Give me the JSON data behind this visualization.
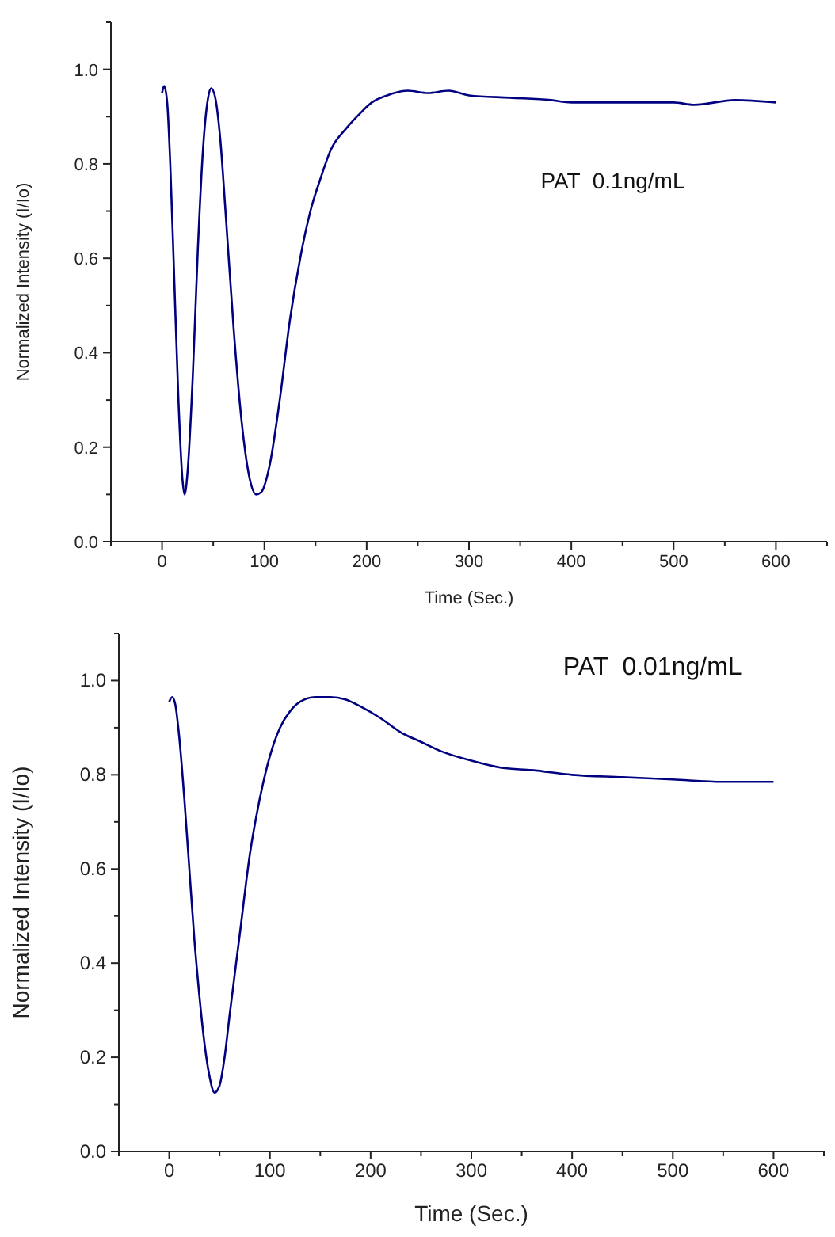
{
  "chart_data": [
    {
      "type": "line",
      "xlabel": "Time (Sec.)",
      "ylabel": "Normalized Intensity (I/Io)",
      "annotations": [
        "PAT  0.1ng/mL"
      ],
      "xlim": [
        -50,
        650
      ],
      "ylim": [
        0,
        1.1
      ],
      "xticks": [
        {
          "value": -50,
          "label": null
        },
        0,
        {
          "value": 50,
          "label": null
        },
        100,
        {
          "value": 150,
          "label": null
        },
        200,
        {
          "value": 250,
          "label": null
        },
        300,
        {
          "value": 350,
          "label": null
        },
        400,
        {
          "value": 450,
          "label": null
        },
        500,
        {
          "value": 550,
          "label": null
        },
        600,
        {
          "value": 650,
          "label": null
        }
      ],
      "yticks": [
        {
          "value": 0,
          "label": "0.0"
        },
        {
          "value": 0.1,
          "label": null
        },
        {
          "value": 0.2,
          "label": "0.2"
        },
        {
          "value": 0.3,
          "label": null
        },
        {
          "value": 0.4,
          "label": "0.4"
        },
        {
          "value": 0.5,
          "label": null
        },
        {
          "value": 0.6,
          "label": "0.6"
        },
        {
          "value": 0.7,
          "label": null
        },
        {
          "value": 0.8,
          "label": "0.8"
        },
        {
          "value": 0.9,
          "label": null
        },
        {
          "value": 1.0,
          "label": "1.0"
        },
        {
          "value": 1.1,
          "label": null
        }
      ],
      "grid": false,
      "series": [
        {
          "color": "#000080",
          "x": [
            0,
            2,
            5,
            8,
            12,
            16,
            20,
            22,
            25,
            30,
            35,
            40,
            45,
            48,
            52,
            57,
            62,
            70,
            78,
            85,
            92,
            97,
            105,
            115,
            125,
            135,
            145,
            155,
            165,
            180,
            195,
            205,
            220,
            240,
            260,
            280,
            300,
            340,
            380,
            400,
            450,
            500,
            520,
            560,
            600
          ],
          "values": [
            0.95,
            0.965,
            0.93,
            0.8,
            0.55,
            0.3,
            0.13,
            0.1,
            0.15,
            0.35,
            0.62,
            0.83,
            0.94,
            0.96,
            0.94,
            0.85,
            0.7,
            0.45,
            0.25,
            0.14,
            0.1,
            0.105,
            0.16,
            0.3,
            0.47,
            0.6,
            0.7,
            0.77,
            0.83,
            0.875,
            0.91,
            0.93,
            0.945,
            0.955,
            0.95,
            0.955,
            0.945,
            0.94,
            0.935,
            0.93,
            0.93,
            0.93,
            0.925,
            0.935,
            0.93
          ]
        }
      ]
    },
    {
      "type": "line",
      "xlabel": "Time (Sec.)",
      "ylabel": "Normalized Intensity (I/Io)",
      "annotations": [
        "PAT  0.01ng/mL"
      ],
      "xlim": [
        -50,
        650
      ],
      "ylim": [
        0,
        1.1
      ],
      "xticks": [
        {
          "value": -50,
          "label": null
        },
        0,
        {
          "value": 50,
          "label": null
        },
        100,
        {
          "value": 150,
          "label": null
        },
        200,
        {
          "value": 250,
          "label": null
        },
        300,
        {
          "value": 350,
          "label": null
        },
        400,
        {
          "value": 450,
          "label": null
        },
        500,
        {
          "value": 550,
          "label": null
        },
        600,
        {
          "value": 650,
          "label": null
        }
      ],
      "yticks": [
        {
          "value": 0,
          "label": "0.0"
        },
        {
          "value": 0.1,
          "label": null
        },
        {
          "value": 0.2,
          "label": "0.2"
        },
        {
          "value": 0.3,
          "label": null
        },
        {
          "value": 0.4,
          "label": "0.4"
        },
        {
          "value": 0.5,
          "label": null
        },
        {
          "value": 0.6,
          "label": "0.6"
        },
        {
          "value": 0.7,
          "label": null
        },
        {
          "value": 0.8,
          "label": "0.8"
        },
        {
          "value": 0.9,
          "label": null
        },
        {
          "value": 1.0,
          "label": "1.0"
        },
        {
          "value": 1.1,
          "label": null
        }
      ],
      "grid": false,
      "series": [
        {
          "color": "#000080",
          "x": [
            0,
            3,
            6,
            10,
            15,
            20,
            25,
            30,
            35,
            40,
            45,
            50,
            55,
            60,
            70,
            80,
            90,
            100,
            110,
            120,
            130,
            145,
            160,
            175,
            190,
            210,
            230,
            250,
            270,
            300,
            330,
            360,
            400,
            450,
            500,
            550,
            600
          ],
          "values": [
            0.955,
            0.965,
            0.95,
            0.88,
            0.75,
            0.6,
            0.45,
            0.33,
            0.23,
            0.16,
            0.125,
            0.14,
            0.2,
            0.29,
            0.46,
            0.63,
            0.75,
            0.84,
            0.9,
            0.935,
            0.955,
            0.965,
            0.965,
            0.96,
            0.945,
            0.92,
            0.89,
            0.87,
            0.85,
            0.83,
            0.815,
            0.81,
            0.8,
            0.795,
            0.79,
            0.785,
            0.785
          ]
        }
      ]
    }
  ]
}
